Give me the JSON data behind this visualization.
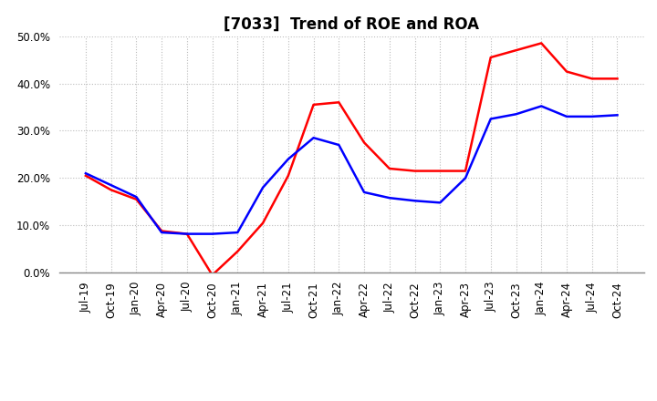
{
  "title": "[7033]  Trend of ROE and ROA",
  "x_labels": [
    "Jul-19",
    "Oct-19",
    "Jan-20",
    "Apr-20",
    "Jul-20",
    "Oct-20",
    "Jan-21",
    "Apr-21",
    "Jul-21",
    "Oct-21",
    "Jan-22",
    "Apr-22",
    "Jul-22",
    "Oct-22",
    "Jan-23",
    "Apr-23",
    "Jul-23",
    "Oct-23",
    "Jan-24",
    "Apr-24",
    "Jul-24",
    "Oct-24"
  ],
  "ROE": [
    0.205,
    0.175,
    0.155,
    0.088,
    0.082,
    -0.005,
    0.045,
    0.105,
    0.205,
    0.355,
    0.36,
    0.275,
    0.22,
    0.215,
    0.215,
    0.215,
    0.455,
    0.47,
    0.485,
    0.425,
    0.41,
    0.41
  ],
  "ROA": [
    0.21,
    0.185,
    0.16,
    0.085,
    0.082,
    0.082,
    0.085,
    0.18,
    0.24,
    0.285,
    0.27,
    0.17,
    0.158,
    0.152,
    0.148,
    0.2,
    0.325,
    0.335,
    0.352,
    0.33,
    0.33,
    0.333
  ],
  "roe_color": "#ff0000",
  "roa_color": "#0000ff",
  "ylim": [
    0.0,
    0.5
  ],
  "yticks": [
    0.0,
    0.1,
    0.2,
    0.3,
    0.4,
    0.5
  ],
  "background_color": "#ffffff",
  "grid_color": "#bbbbbb",
  "title_fontsize": 12,
  "legend_fontsize": 10,
  "tick_fontsize": 8.5,
  "line_width": 1.8
}
